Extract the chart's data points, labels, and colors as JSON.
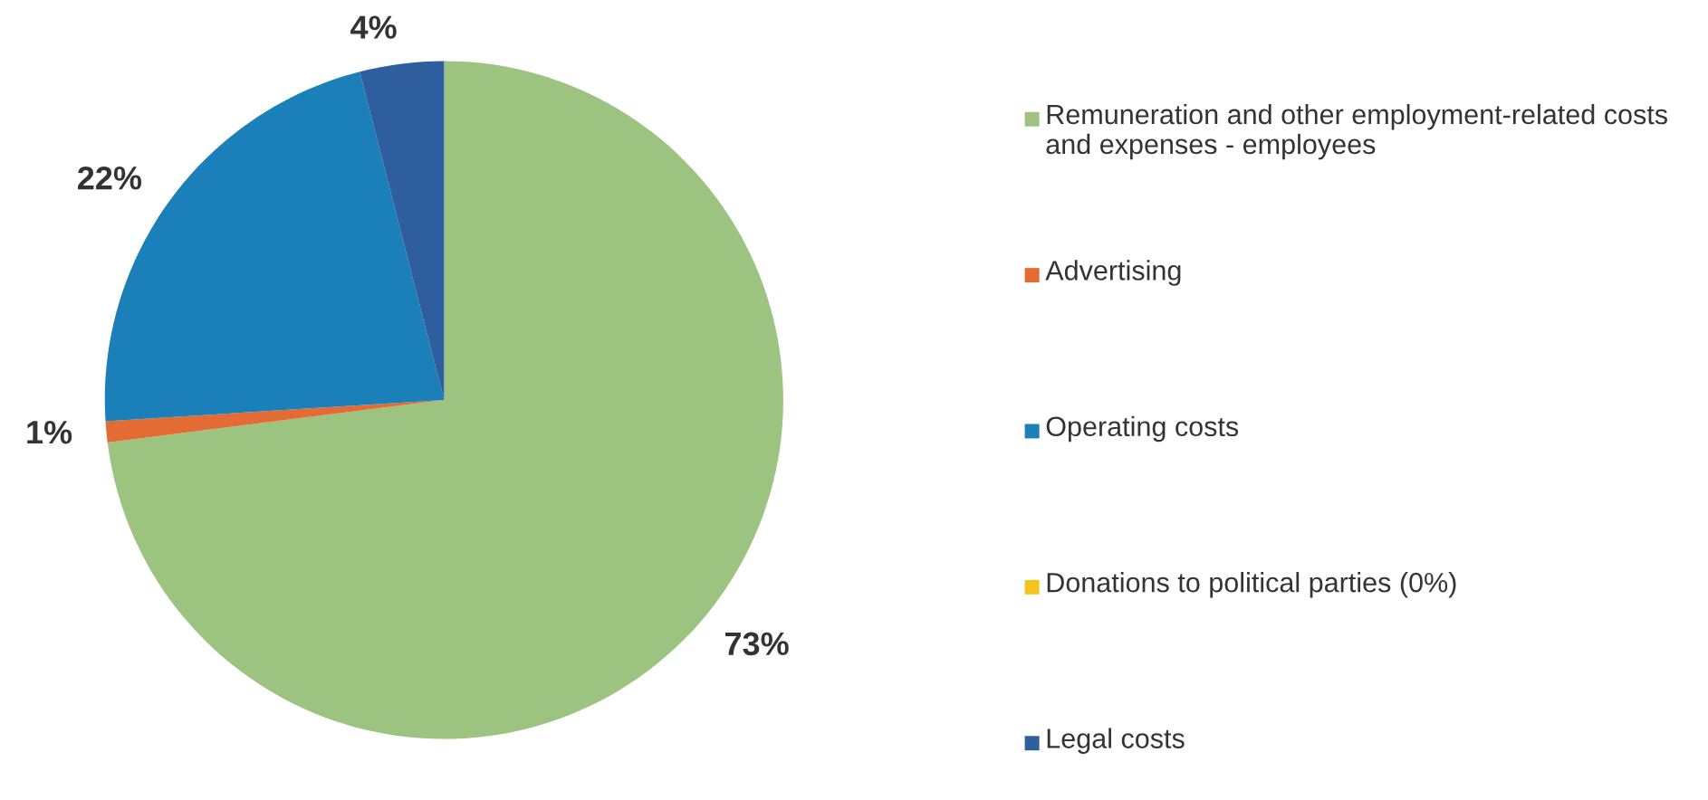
{
  "chart_data": {
    "type": "pie",
    "categories": [
      "Remuneration and other employment-related costs and expenses - employees",
      "Advertising",
      "Operating costs",
      "Donations to political parties (0%)",
      "Legal costs"
    ],
    "values": [
      73,
      1,
      22,
      0,
      4
    ],
    "colors": [
      "#9cc480",
      "#e56b35",
      "#1b7fba",
      "#f2c41c",
      "#2f5e9e"
    ],
    "value_labels": [
      "73%",
      "1%",
      "22%",
      null,
      "4%"
    ],
    "legend": "right"
  }
}
